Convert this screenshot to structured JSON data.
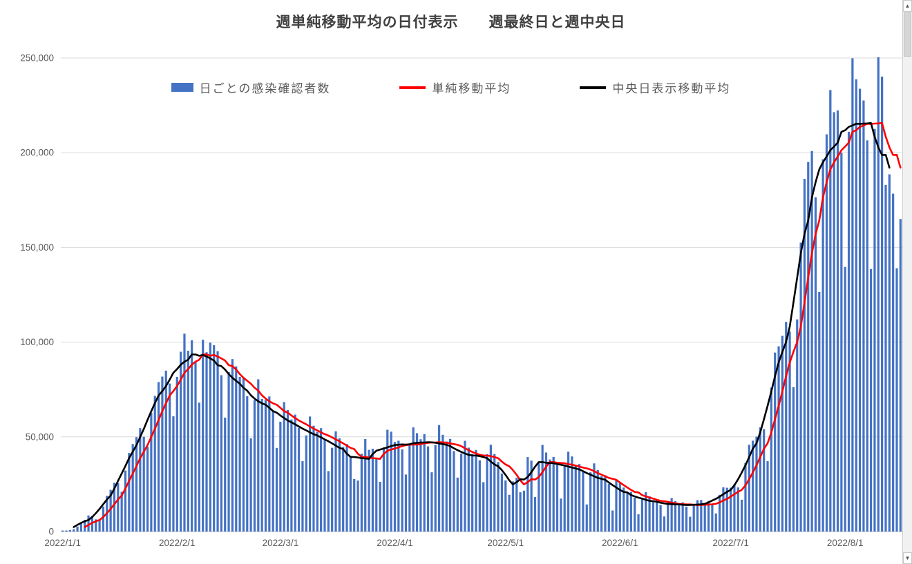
{
  "window": {
    "scrollbar": {
      "up_arrow": "▲",
      "down_arrow": "▼"
    }
  },
  "chart": {
    "title": "週単純移動平均の日付表示　　週最終日と週中央日",
    "legend": [
      {
        "label": "日ごとの感染確認者数",
        "marker": "bar",
        "color": "#4472C4"
      },
      {
        "label": "単純移動平均",
        "marker": "line",
        "color": "#FF0000"
      },
      {
        "label": "中央日表示移動平均",
        "marker": "line",
        "color": "#000000"
      }
    ]
  },
  "chart_data": {
    "type": "combo-bar-line",
    "title": "週単純移動平均の日付表示　　週最終日と週中央日",
    "x_start_date": "2022/1/1",
    "ylim": [
      0,
      250000
    ],
    "grid": true,
    "legend_position": "top",
    "y_ticks": [
      {
        "label": "0",
        "value": 0
      },
      {
        "label": "50,000",
        "value": 50000
      },
      {
        "label": "100,000",
        "value": 100000
      },
      {
        "label": "150,000",
        "value": 150000
      },
      {
        "label": "200,000",
        "value": 200000
      },
      {
        "label": "250,000",
        "value": 250000
      }
    ],
    "x_ticks": [
      {
        "label": "2022/1/1",
        "day_index": 0
      },
      {
        "label": "2022/2/1",
        "day_index": 31
      },
      {
        "label": "2022/3/1",
        "day_index": 59
      },
      {
        "label": "2022/4/1",
        "day_index": 90
      },
      {
        "label": "2022/5/1",
        "day_index": 120
      },
      {
        "label": "2022/6/1",
        "day_index": 151
      },
      {
        "label": "2022/7/1",
        "day_index": 181
      },
      {
        "label": "2022/8/1",
        "day_index": 212
      }
    ],
    "bar_series": {
      "name": "日ごとの感染確認者数",
      "color": "#4472C4",
      "values": [
        534,
        554,
        782,
        1268,
        2638,
        4475,
        6214,
        8480,
        8249,
        6438,
        6378,
        13244,
        18859,
        22045,
        25742,
        25633,
        20991,
        32197,
        41485,
        46199,
        49854,
        54576,
        50030,
        44810,
        62612,
        71633,
        78931,
        81811,
        84933,
        78128,
        60838,
        81658,
        94930,
        104470,
        95453,
        100949,
        89456,
        68039,
        101278,
        94653,
        99695,
        98370,
        95208,
        82550,
        60142,
        84220,
        91051,
        87213,
        81621,
        81333,
        71488,
        49210,
        69447,
        80367,
        70025,
        69523,
        71327,
        63703,
        44167,
        57972,
        68367,
        64182,
        59160,
        61754,
        54793,
        37158,
        50766,
        60736,
        55868,
        52616,
        54576,
        48283,
        31918,
        44243,
        52931,
        49210,
        44659,
        46251,
        39854,
        27701,
        26932,
        41038,
        48825,
        43137,
        43735,
        38675,
        26257,
        44466,
        53743,
        52719,
        47300,
        47944,
        43405,
        30104,
        45601,
        54985,
        51941,
        48747,
        51460,
        44955,
        31288,
        45728,
        56218,
        51090,
        47549,
        48898,
        42527,
        28481,
        41145,
        47913,
        44281,
        41015,
        43057,
        37604,
        26079,
        40843,
        45830,
        40939,
        36695,
        30636,
        26991,
        19387,
        26469,
        28368,
        20732,
        21574,
        39327,
        37438,
        18258,
        36022,
        45747,
        41741,
        38057,
        39416,
        35008,
        17404,
        35275,
        42161,
        39642,
        34906,
        35642,
        31457,
        14296,
        31277,
        35987,
        32444,
        29185,
        29756,
        25183,
        11108,
        27549,
        25771,
        23236,
        20175,
        20879,
        17833,
        9106,
        17795,
        20821,
        18635,
        16509,
        16593,
        14025,
        7956,
        15331,
        17672,
        16075,
        14709,
        15426,
        13160,
        7800,
        14137,
        16592,
        16676,
        15124,
        16167,
        14284,
        9571,
        19386,
        23346,
        23135,
        23156,
        24903,
        23299,
        16808,
        36189,
        45821,
        47977,
        50102,
        54993,
        54071,
        37143,
        76012,
        94493,
        97788,
        103311,
        110675,
        105584,
        76200,
        112000,
        152500,
        186200,
        195100,
        200900,
        176500,
        126500,
        196500,
        209694,
        233100,
        221400,
        222300,
        200000,
        139687,
        211058,
        249830,
        238735,
        233769,
        227563,
        206495,
        138613,
        212552,
        250403,
        240205,
        183003,
        188570,
        178356,
        139000,
        165000
      ]
    },
    "line_series": [
      {
        "name": "単純移動平均",
        "color": "#FF0000",
        "derivation": "7-day simple moving average plotted at last day of window",
        "plot_offset_days": 0
      },
      {
        "name": "中央日表示移動平均",
        "color": "#000000",
        "derivation": "7-day simple moving average plotted at center day of window",
        "plot_offset_days": -3
      }
    ]
  }
}
